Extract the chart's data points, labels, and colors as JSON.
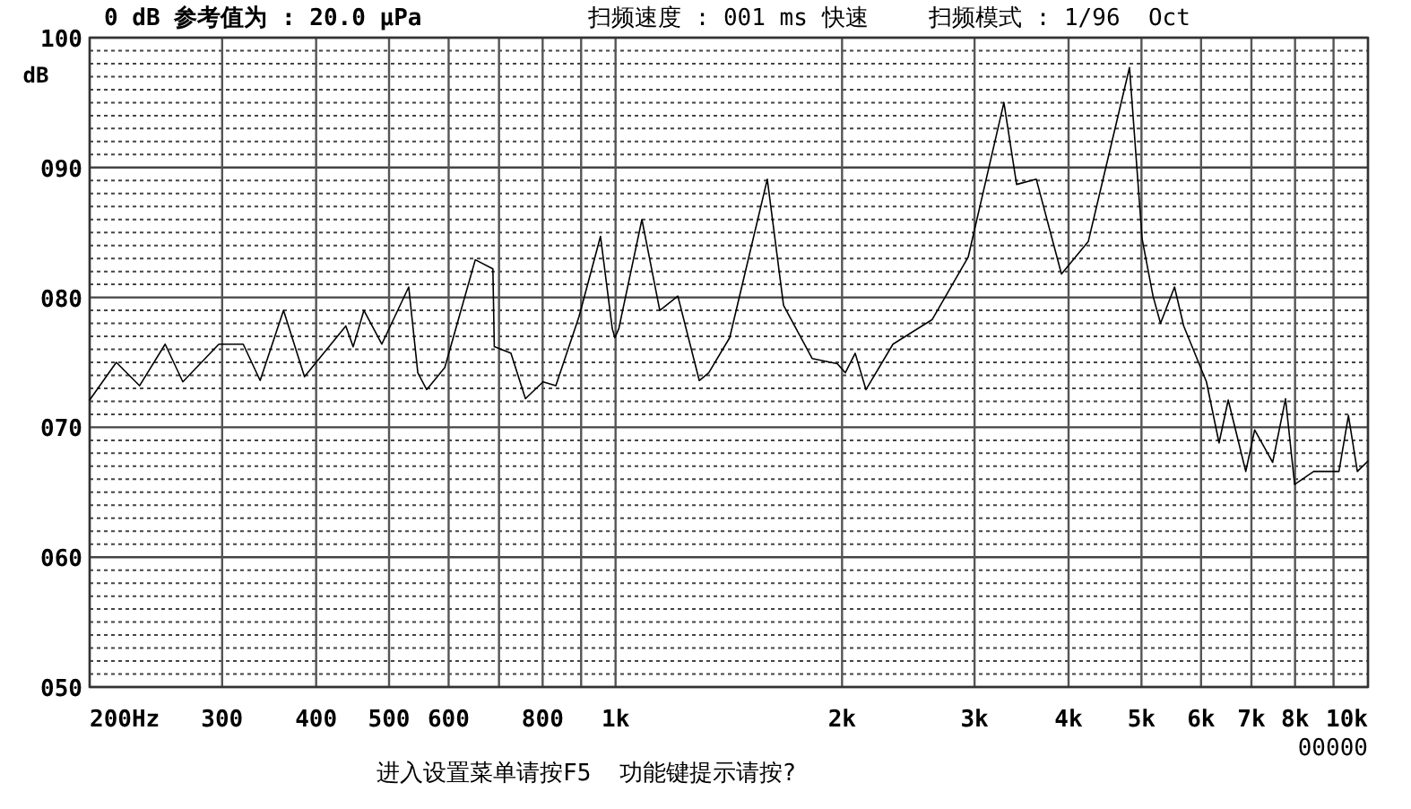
{
  "chart_data": {
    "type": "line",
    "title": "0 dB 参考值为 : 20.0 μPa",
    "ylabel": "dB",
    "annotations": [
      "扫频速度 : 001 ms 快速",
      "扫频模式 : 1/96  Oct",
      "00000",
      "进入设置菜单请按F5  功能键提示请按?"
    ],
    "log": "x",
    "grid": true,
    "marker": "none",
    "line_style": "solid",
    "xlim": [
      200,
      10000
    ],
    "ylim": [
      50,
      100
    ],
    "xticks": [
      {
        "value": 200,
        "label": "200Hz"
      },
      300,
      400,
      500,
      600,
      {
        "value": 700,
        "label": null
      },
      800,
      {
        "value": 900,
        "label": null
      },
      {
        "value": 1000,
        "label": "1k"
      },
      {
        "value": 2000,
        "label": "2k"
      },
      {
        "value": 3000,
        "label": "3k"
      },
      {
        "value": 4000,
        "label": "4k"
      },
      {
        "value": 5000,
        "label": "5k"
      },
      {
        "value": 6000,
        "label": "6k"
      },
      {
        "value": 7000,
        "label": "7k"
      },
      {
        "value": 8000,
        "label": "8k"
      },
      {
        "value": 9000,
        "label": null
      },
      {
        "value": 10000,
        "label": "10k"
      }
    ],
    "yticks": [
      {
        "value": 50,
        "label": "050"
      },
      {
        "value": 60,
        "label": "060"
      },
      {
        "value": 70,
        "label": "070"
      },
      {
        "value": 80,
        "label": "080"
      },
      {
        "value": 90,
        "label": "090"
      },
      100
    ],
    "series": [
      {
        "color": "#000000",
        "x": [
          200,
          217,
          233,
          252,
          266,
          297,
          320,
          337,
          362,
          386,
          438,
          448,
          463,
          489,
          531,
          546,
          561,
          593,
          651,
          687,
          690,
          726,
          759,
          801,
          833,
          894,
          955,
          990,
          998,
          1010,
          1084,
          1145,
          1210,
          1292,
          1330,
          1418,
          1591,
          1672,
          1825,
          1971,
          2020,
          2082,
          2152,
          2337,
          2636,
          2942,
          3282,
          3412,
          3624,
          3914,
          4249,
          4820,
          5010,
          5180,
          5300,
          5532,
          5690,
          6100,
          6340,
          6520,
          6880,
          7070,
          7470,
          7770,
          7990,
          8470,
          9150,
          9420,
          9680,
          10000
        ],
        "values": [
          72.1,
          75.0,
          73.2,
          76.4,
          73.5,
          76.4,
          76.4,
          73.6,
          79.0,
          73.9,
          77.8,
          76.2,
          79.0,
          76.4,
          80.8,
          74.2,
          72.9,
          74.6,
          82.9,
          82.2,
          76.2,
          75.7,
          72.2,
          73.5,
          73.2,
          78.5,
          84.7,
          77.6,
          76.9,
          77.6,
          86.0,
          79.0,
          80.1,
          73.6,
          74.2,
          76.9,
          89.1,
          79.4,
          75.3,
          74.9,
          74.2,
          75.7,
          72.9,
          76.4,
          78.3,
          83.1,
          95.0,
          88.7,
          89.1,
          81.8,
          84.3,
          97.7,
          84.5,
          80.1,
          78.0,
          80.8,
          77.8,
          73.5,
          68.8,
          72.1,
          66.6,
          69.8,
          67.3,
          72.2,
          65.6,
          66.6,
          66.6,
          70.9,
          66.6,
          67.4
        ]
      }
    ]
  }
}
